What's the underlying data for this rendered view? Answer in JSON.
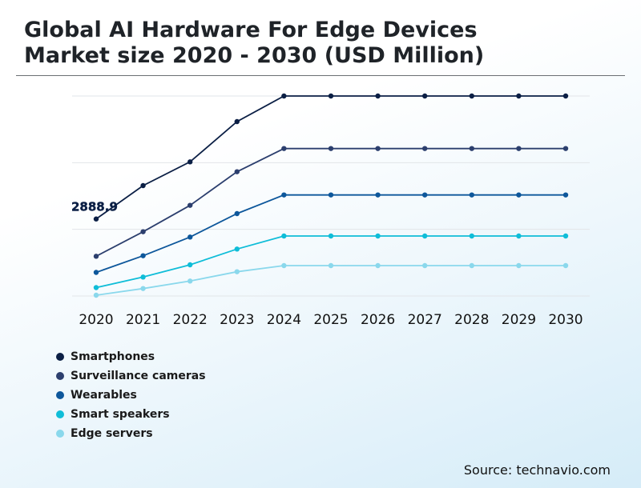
{
  "header": {
    "title_line1": "Global AI Hardware For Edge Devices",
    "title_line2": "Market size 2020 - 2030 (USD Million)"
  },
  "source": "Source: technavio.com",
  "chart_data": {
    "type": "line",
    "title": "Global AI Hardware For Edge Devices Market size 2020 - 2030 (USD Million)",
    "x": [
      "2020",
      "2021",
      "2022",
      "2023",
      "2024",
      "2025",
      "2026",
      "2027",
      "2028",
      "2029",
      "2030"
    ],
    "y_tick_values": [
      0,
      2500,
      5000,
      7500
    ],
    "ylim": [
      0,
      7500
    ],
    "grid": true,
    "legend_position": "bottom-left",
    "annotations": [
      {
        "text": "2888.9",
        "series": "Smartphones",
        "x": "2020",
        "y": 2888.9
      }
    ],
    "series": [
      {
        "name": "Smartphones",
        "color": "#0b1f45",
        "values": [
          2888.9,
          4140,
          5030,
          6540,
          7500,
          7500,
          7500,
          7500,
          7500,
          7500,
          7500
        ]
      },
      {
        "name": "Surveillance cameras",
        "color": "#2c3f6e",
        "values": [
          1490,
          2410,
          3400,
          4660,
          5530,
          5530,
          5530,
          5530,
          5530,
          5530,
          5530
        ]
      },
      {
        "name": "Wearables",
        "color": "#0d579b",
        "values": [
          885,
          1510,
          2210,
          3090,
          3790,
          3790,
          3790,
          3790,
          3790,
          3790,
          3790
        ]
      },
      {
        "name": "Smart speakers",
        "color": "#0fbdd8",
        "values": [
          315,
          710,
          1170,
          1760,
          2250,
          2250,
          2250,
          2250,
          2250,
          2250,
          2250
        ]
      },
      {
        "name": "Edge servers",
        "color": "#8ad8ec",
        "values": [
          30,
          280,
          560,
          910,
          1140,
          1140,
          1140,
          1140,
          1140,
          1140,
          1140
        ]
      }
    ]
  }
}
